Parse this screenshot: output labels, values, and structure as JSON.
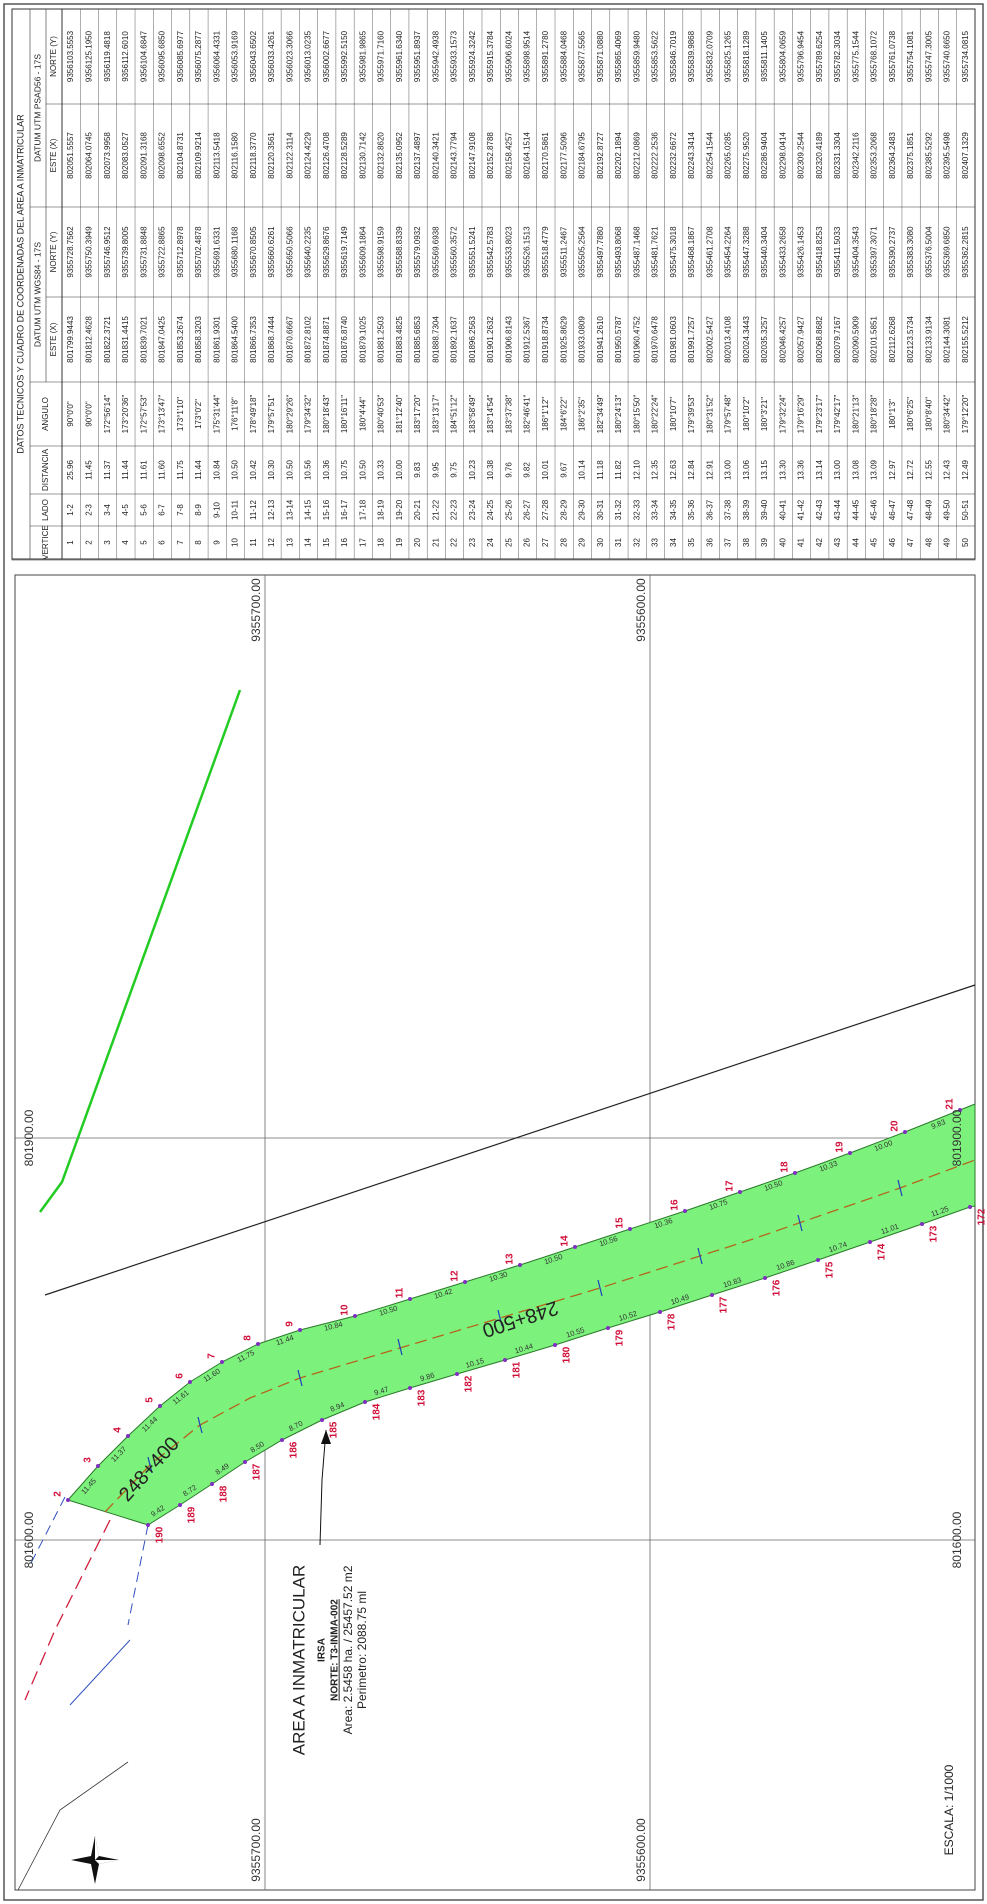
{
  "map": {
    "grid_x_labels": [
      "801600.00",
      "801900.00"
    ],
    "grid_y_labels": [
      "9355700.00",
      "9355600.00"
    ],
    "area_title": "AREA A INMATRICULAR",
    "owner": "IRSA",
    "code": "NORTE: T3-INMA-002",
    "area": "Area: 2.5458 ha. / 25457.52 m2",
    "perimeter": "Perimetro: 2088.75 ml",
    "stations": [
      "248+400",
      "248+500"
    ],
    "scale": "ESCALA: 1/1000",
    "outer_vertices": [
      2,
      3,
      4,
      5,
      6,
      7,
      8,
      9,
      10,
      11,
      12,
      13,
      14,
      15,
      16,
      17,
      18,
      19,
      20,
      21
    ],
    "inner_vertices": [
      190,
      189,
      188,
      187,
      186,
      185,
      184,
      183,
      182,
      181,
      180,
      179,
      178,
      177,
      176,
      175,
      174,
      173,
      172
    ],
    "outer_distances": [
      "11.45",
      "11.37",
      "11.44",
      "11.61",
      "11.60",
      "11.75",
      "11.44",
      "10.84",
      "10.50",
      "10.42",
      "10.30",
      "10.50",
      "10.56",
      "10.36",
      "10.75",
      "10.50",
      "10.33",
      "10.00",
      "9.83"
    ],
    "inner_distances": [
      "9.42",
      "8.72",
      "8.49",
      "8.50",
      "8.70",
      "8.94",
      "9.47",
      "9.86",
      "10.15",
      "10.44",
      "10.55",
      "10.52",
      "10.49",
      "10.83",
      "10.86",
      "10.74",
      "11.01",
      "11.25"
    ]
  },
  "table": {
    "title": "DATOS TECNICOS Y CUADRO DE COORDENADAS DEL AREA A INMATRICULAR",
    "datum_wgs": "DATUM UTM WGS84 - 17S",
    "datum_psad": "DATUM UTM PSAD56 - 17S",
    "headers": [
      "VERTICE",
      "LADO",
      "DISTANCIA",
      "ANGULO",
      "ESTE (X)",
      "NORTE (Y)",
      "ESTE (X)",
      "NORTE (Y)"
    ],
    "rows": [
      [
        "1",
        "1-2",
        "25.96",
        "90°0'0\"",
        "801799.9443",
        "9355728.7562",
        "802051.5557",
        "9356103.5553"
      ],
      [
        "2",
        "2-3",
        "11.45",
        "90°0'0\"",
        "801812.4628",
        "9355750.3949",
        "802064.0745",
        "9356125.1950"
      ],
      [
        "3",
        "3-4",
        "11.37",
        "172°56'14\"",
        "801822.3721",
        "9355746.9512",
        "802073.9958",
        "9356119.4818"
      ],
      [
        "4",
        "4-5",
        "11.44",
        "173°20'36\"",
        "801831.4415",
        "9355739.8005",
        "802083.0527",
        "9356112.6010"
      ],
      [
        "5",
        "5-6",
        "11.61",
        "172°57'53\"",
        "801839.7021",
        "9355731.8848",
        "802091.3168",
        "9356104.6847"
      ],
      [
        "6",
        "6-7",
        "11.60",
        "173°13'47\"",
        "801847.0425",
        "9355722.8865",
        "802098.6552",
        "9356095.6850"
      ],
      [
        "7",
        "7-8",
        "11.75",
        "173°1'10\"",
        "801853.2674",
        "9355712.8978",
        "802104.8731",
        "9356085.6977"
      ],
      [
        "8",
        "8-9",
        "11.44",
        "173°0'2\"",
        "801858.3203",
        "9355702.4878",
        "802109.9214",
        "9356075.2877"
      ],
      [
        "9",
        "9-10",
        "10.84",
        "175°31'44\"",
        "801861.9301",
        "9355691.6331",
        "802113.5418",
        "9356064.4331"
      ],
      [
        "10",
        "10-11",
        "10.50",
        "176°11'8\"",
        "801864.5400",
        "9355680.1168",
        "802116.1580",
        "9356053.9169"
      ],
      [
        "11",
        "11-12",
        "10.42",
        "178°49'18\"",
        "801866.7353",
        "9355670.8505",
        "802118.3770",
        "9356043.6502"
      ],
      [
        "12",
        "12-13",
        "10.30",
        "179°57'51\"",
        "801868.7444",
        "9355660.6261",
        "802120.3561",
        "9356033.4261"
      ],
      [
        "13",
        "13-14",
        "10.50",
        "180°29'26\"",
        "801870.6667",
        "9355650.5066",
        "802122.3114",
        "9356023.3066"
      ],
      [
        "14",
        "14-15",
        "10.56",
        "179°34'32\"",
        "801872.8102",
        "9355640.2235",
        "802124.4229",
        "9356013.0235"
      ],
      [
        "15",
        "15-16",
        "10.36",
        "180°18'43\"",
        "801874.8871",
        "9355629.8676",
        "802126.4708",
        "9356002.6677"
      ],
      [
        "16",
        "16-17",
        "10.75",
        "180°16'11\"",
        "801876.8740",
        "9355619.7149",
        "802128.5289",
        "9355992.5150"
      ],
      [
        "17",
        "17-18",
        "10.50",
        "180°4'44\"",
        "801879.1025",
        "9355609.1864",
        "802130.7142",
        "9355981.9865"
      ],
      [
        "18",
        "18-19",
        "10.33",
        "180°40'53\"",
        "801881.2503",
        "9355598.9159",
        "802132.8620",
        "9355971.7160"
      ],
      [
        "19",
        "19-20",
        "10.00",
        "181°12'40\"",
        "801883.4825",
        "9355588.8339",
        "802135.0952",
        "9355961.6340"
      ],
      [
        "20",
        "20-21",
        "9.83",
        "183°17'20\"",
        "801885.6853",
        "9355579.0932",
        "802137.4897",
        "9355951.8937"
      ],
      [
        "21",
        "21-22",
        "9.95",
        "183°13'17\"",
        "801888.7304",
        "9355569.6938",
        "802140.3421",
        "9355942.4938"
      ],
      [
        "22",
        "22-23",
        "9.75",
        "184°51'12\"",
        "801892.1637",
        "9355560.3572",
        "802143.7794",
        "9355933.1573"
      ],
      [
        "23",
        "23-24",
        "10.23",
        "183°58'49\"",
        "801896.2563",
        "9355551.5241",
        "802147.9108",
        "9355924.3242"
      ],
      [
        "24",
        "24-25",
        "10.38",
        "183°14'54\"",
        "801901.2632",
        "9355542.5783",
        "802152.8788",
        "9355915.3784"
      ],
      [
        "25",
        "25-26",
        "9.76",
        "183°37'38\"",
        "801906.8143",
        "9355533.8023",
        "802158.4257",
        "9355906.6024"
      ],
      [
        "26",
        "26-27",
        "9.82",
        "182°46'41\"",
        "801912.5367",
        "9355526.1513",
        "802164.1514",
        "9355898.9514"
      ],
      [
        "27",
        "27-28",
        "10.01",
        "186°1'12\"",
        "801918.8734",
        "9355518.4779",
        "802170.5861",
        "9355891.2780"
      ],
      [
        "28",
        "28-29",
        "9.67",
        "184°6'22\"",
        "801925.8629",
        "9355511.2467",
        "802177.5096",
        "9355884.0468"
      ],
      [
        "29",
        "29-30",
        "10.14",
        "186°2'35\"",
        "801933.0809",
        "9355505.2564",
        "802184.6795",
        "9355877.5565"
      ],
      [
        "30",
        "30-31",
        "11.18",
        "182°34'49\"",
        "801941.2610",
        "9355497.7880",
        "802192.8727",
        "9355871.0880"
      ],
      [
        "31",
        "31-32",
        "11.82",
        "180°24'13\"",
        "801950.5787",
        "9355493.8068",
        "802202.1894",
        "9355865.4069"
      ],
      [
        "32",
        "32-33",
        "12.10",
        "180°15'50\"",
        "801960.4752",
        "9355487.1468",
        "802212.0869",
        "9355859.9480"
      ],
      [
        "33",
        "33-34",
        "12.35",
        "180°22'24\"",
        "801970.6478",
        "9355481.7621",
        "802222.2536",
        "9355853.5622"
      ],
      [
        "34",
        "34-35",
        "12.63",
        "180°10'7\"",
        "801981.0603",
        "9355475.3018",
        "802232.6672",
        "9355846.7019"
      ],
      [
        "35",
        "35-36",
        "12.84",
        "179°39'53\"",
        "801991.7257",
        "9355468.1867",
        "802243.3414",
        "9355839.9868"
      ],
      [
        "36",
        "36-37",
        "12.91",
        "180°31'52\"",
        "802002.5427",
        "9355461.2708",
        "802254.1544",
        "9355832.0709"
      ],
      [
        "37",
        "37-38",
        "13.00",
        "179°57'48\"",
        "802013.4108",
        "9355454.2264",
        "802265.0285",
        "9355825.1265"
      ],
      [
        "38",
        "38-39",
        "13.06",
        "180°10'2\"",
        "802024.3443",
        "9355447.3288",
        "802275.9520",
        "9355818.1289"
      ],
      [
        "39",
        "39-40",
        "13.15",
        "180°3'21\"",
        "802035.3257",
        "9355440.3404",
        "802286.9404",
        "9355811.1405"
      ],
      [
        "40",
        "40-41",
        "13.30",
        "179°32'24\"",
        "802046.4257",
        "9355433.2658",
        "802298.0414",
        "9355804.0659"
      ],
      [
        "41",
        "41-42",
        "13.36",
        "179°16'29\"",
        "802057.9427",
        "9355426.1453",
        "802309.2544",
        "9355796.9454"
      ],
      [
        "42",
        "42-43",
        "13.14",
        "179°23'17\"",
        "802068.8682",
        "9355418.8253",
        "802320.4189",
        "9355789.6254"
      ],
      [
        "43",
        "43-44",
        "13.00",
        "179°42'17\"",
        "802079.7167",
        "9355411.5033",
        "802331.3304",
        "9355782.3034"
      ],
      [
        "44",
        "44-45",
        "13.08",
        "180°21'13\"",
        "802090.5909",
        "9355404.3543",
        "802342.2116",
        "9355775.1544"
      ],
      [
        "45",
        "45-46",
        "13.09",
        "180°18'28\"",
        "802101.5851",
        "9355397.3071",
        "802353.2068",
        "9355768.1072"
      ],
      [
        "46",
        "46-47",
        "12.97",
        "180°1'3\"",
        "802112.6268",
        "9355390.2737",
        "802364.2483",
        "9355761.0738"
      ],
      [
        "47",
        "47-48",
        "12.72",
        "180°6'25\"",
        "802123.5734",
        "9355383.3080",
        "802375.1851",
        "9355754.1081"
      ],
      [
        "48",
        "48-49",
        "12.55",
        "180°8'40\"",
        "802133.9134",
        "9355376.5004",
        "802385.5292",
        "9355747.3005"
      ],
      [
        "49",
        "49-50",
        "12.43",
        "180°34'42\"",
        "802144.3081",
        "9355369.6850",
        "802395.5498",
        "9355740.6650"
      ],
      [
        "50",
        "50-51",
        "12.49",
        "179°12'20\"",
        "802155.5212",
        "9355362.2815",
        "802407.1329",
        "9355734.0815"
      ]
    ]
  }
}
